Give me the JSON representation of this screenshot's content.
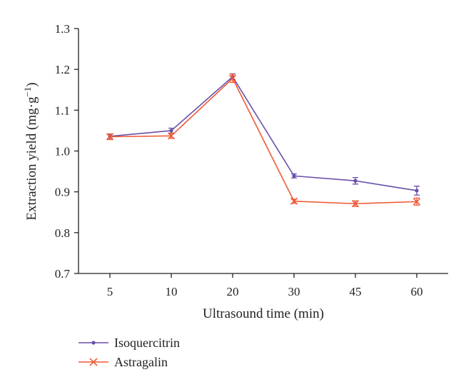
{
  "chart_data": {
    "type": "line",
    "categories": [
      "5",
      "10",
      "20",
      "30",
      "45",
      "60"
    ],
    "series": [
      {
        "name": "Isoquercitrin",
        "values": [
          1.036,
          1.05,
          1.182,
          0.939,
          0.927,
          0.903
        ],
        "errors": [
          0.005,
          0.006,
          0.007,
          0.005,
          0.008,
          0.011
        ],
        "color": "#6a4fa8",
        "marker": "dot"
      },
      {
        "name": "Astragalin",
        "values": [
          1.035,
          1.037,
          1.178,
          0.877,
          0.871,
          0.876
        ],
        "errors": [
          0.007,
          0.006,
          0.01,
          0.005,
          0.007,
          0.009
        ],
        "color": "#ef5a36",
        "marker": "x"
      }
    ],
    "xlabel": "Ultrasound time (min)",
    "ylabel": "Extraction yield (mg·g",
    "ylabel_superscript": "−1",
    "ylabel_close": ")",
    "ylim": [
      0.7,
      1.3
    ],
    "yticks": [
      "0.7",
      "0.8",
      "0.9",
      "1.0",
      "1.1",
      "1.2",
      "1.3"
    ],
    "grid": false,
    "legend_position": "bottom-left"
  }
}
